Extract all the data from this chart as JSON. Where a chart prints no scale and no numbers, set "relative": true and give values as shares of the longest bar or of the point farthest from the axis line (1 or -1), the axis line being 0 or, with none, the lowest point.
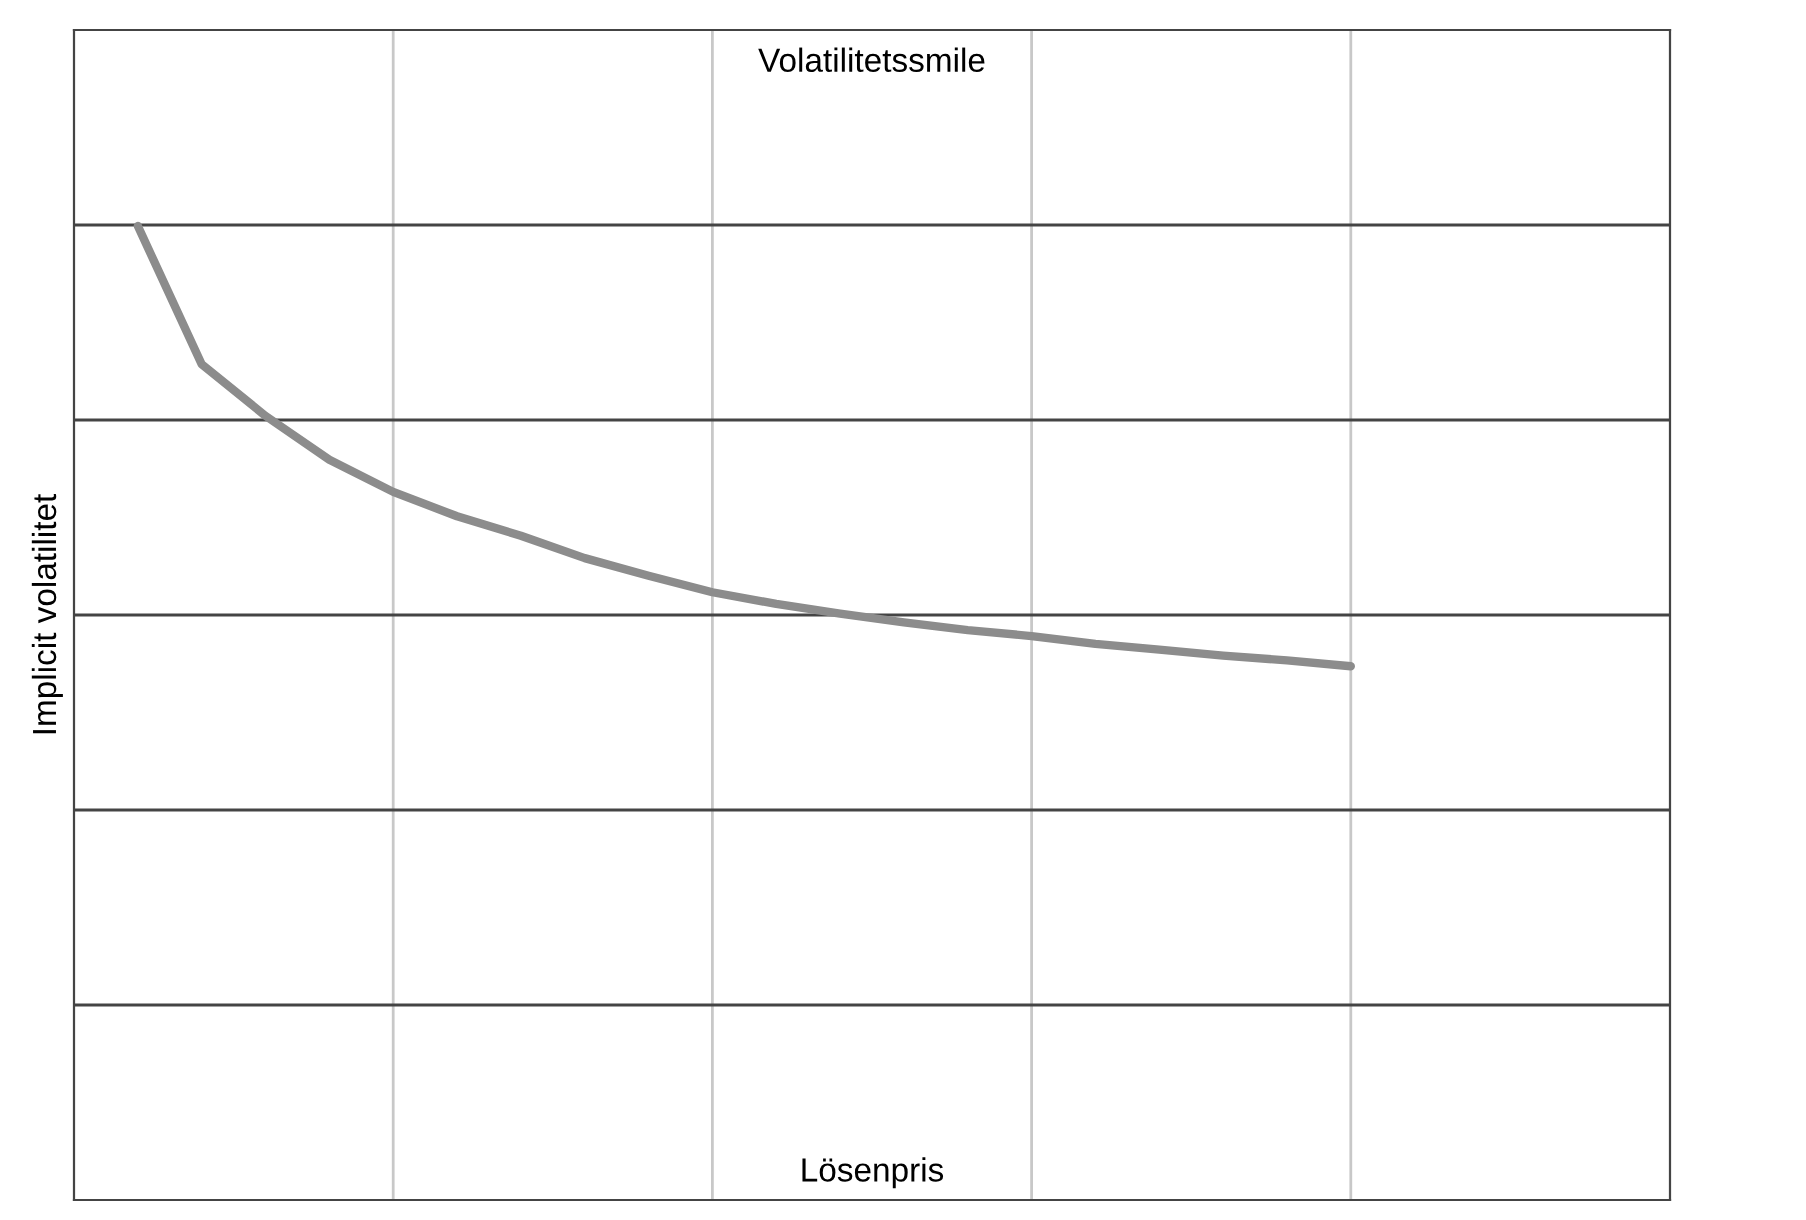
{
  "chart_data": {
    "type": "line",
    "title": "Volatilitetssmile",
    "xlabel": "Lösenpris",
    "ylabel": "Implicit volatilitet",
    "relative": true,
    "grid": true,
    "categories": [
      null,
      null,
      null,
      null,
      null,
      null,
      null,
      null,
      null,
      null,
      null,
      null,
      null,
      null,
      null,
      null,
      null,
      null,
      null,
      null,
      null,
      null,
      null,
      null,
      null,
      null
    ],
    "series": [
      {
        "color": "#8c8c8c",
        "values": [
          null,
          1.0,
          0.858,
          0.805,
          0.76,
          0.727,
          0.702,
          0.682,
          0.659,
          0.641,
          0.624,
          0.612,
          0.602,
          0.593,
          0.585,
          0.579,
          0.571,
          0.565,
          0.559,
          0.554,
          0.548,
          null,
          null,
          null,
          null,
          null
        ]
      }
    ]
  }
}
